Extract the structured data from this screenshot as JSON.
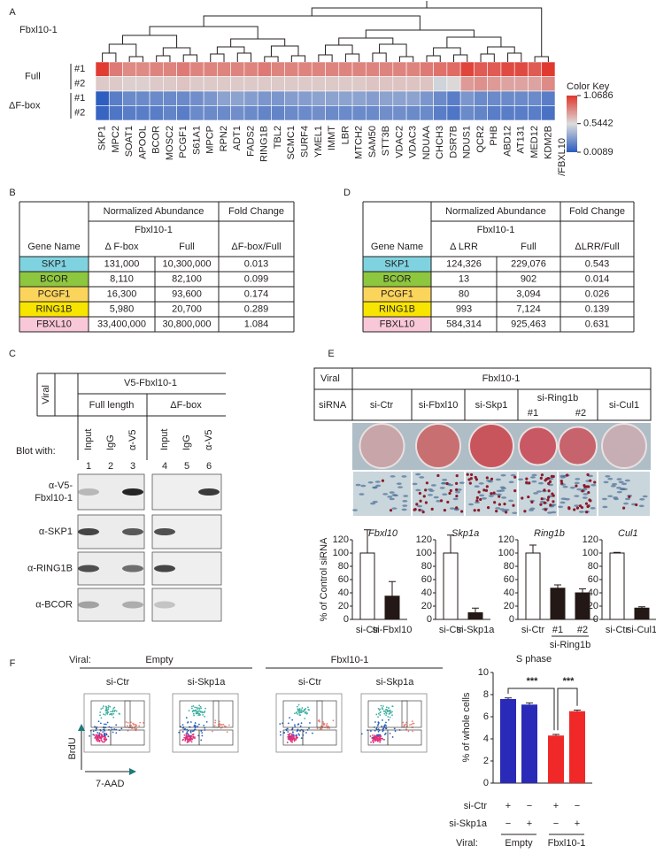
{
  "panel_labels": [
    "A",
    "B",
    "C",
    "D",
    "E",
    "F"
  ],
  "panel_a": {
    "group_label": "Fbxl10-1",
    "row_groups": [
      "Full",
      "ΔF-box"
    ],
    "row_labels": [
      "#1",
      "#2",
      "#1",
      "#2"
    ],
    "genes": [
      "SKP1",
      "MPC2",
      "SOAT1",
      "APOOL",
      "BCOR",
      "MOSC2",
      "PCGF1",
      "S61A1",
      "MPCP",
      "RPN2",
      "ADT1",
      "FADS2",
      "RING1B",
      "TBL2",
      "SCMC1",
      "SURF4",
      "YMEL1",
      "IMMT",
      "LBR",
      "MTCH2",
      "SAM50",
      "STT3B",
      "VDAC2",
      "VDAC3",
      "NDUAA",
      "CHCH3",
      "DSR7B",
      "NDUS1",
      "QCR2",
      "PHB",
      "ABD12",
      "AT131",
      "MED12",
      "KDM2B"
    ],
    "gene_colors": [
      "#e3262a",
      "#231f20",
      "#231f20",
      "#231f20",
      "#e3262a",
      "#231f20",
      "#e3262a",
      "#231f20",
      "#231f20",
      "#231f20",
      "#231f20",
      "#231f20",
      "#e3262a",
      "#231f20",
      "#231f20",
      "#231f20",
      "#231f20",
      "#231f20",
      "#231f20",
      "#231f20",
      "#231f20",
      "#231f20",
      "#231f20",
      "#231f20",
      "#231f20",
      "#231f20",
      "#231f20",
      "#231f20",
      "#231f20",
      "#231f20",
      "#231f20",
      "#231f20",
      "#231f20",
      "#231f20"
    ],
    "label_suffix": "/FBXL10",
    "rows": [
      [
        1.05,
        0.85,
        0.8,
        0.8,
        0.82,
        0.82,
        0.85,
        0.82,
        0.82,
        0.82,
        0.82,
        0.82,
        0.85,
        0.82,
        0.82,
        0.82,
        0.82,
        0.82,
        0.82,
        0.82,
        0.82,
        0.82,
        0.82,
        0.82,
        0.85,
        0.88,
        0.9,
        1.02,
        0.95,
        0.95,
        1.0,
        1.0,
        0.95,
        1.06
      ],
      [
        0.6,
        0.6,
        0.58,
        0.58,
        0.6,
        0.6,
        0.62,
        0.6,
        0.6,
        0.6,
        0.6,
        0.6,
        0.6,
        0.6,
        0.6,
        0.6,
        0.6,
        0.6,
        0.6,
        0.6,
        0.62,
        0.62,
        0.62,
        0.62,
        0.62,
        0.5,
        0.55,
        0.75,
        0.78,
        0.75,
        0.72,
        0.72,
        0.72,
        0.8
      ],
      [
        0.02,
        0.15,
        0.2,
        0.2,
        0.2,
        0.2,
        0.2,
        0.22,
        0.25,
        0.3,
        0.3,
        0.28,
        0.25,
        0.25,
        0.28,
        0.28,
        0.3,
        0.3,
        0.3,
        0.3,
        0.28,
        0.3,
        0.3,
        0.3,
        0.25,
        0.2,
        0.15,
        0.25,
        0.2,
        0.2,
        0.2,
        0.2,
        0.2,
        0.15
      ],
      [
        0.05,
        0.12,
        0.15,
        0.15,
        0.15,
        0.18,
        0.15,
        0.2,
        0.2,
        0.2,
        0.22,
        0.2,
        0.18,
        0.18,
        0.2,
        0.2,
        0.22,
        0.2,
        0.2,
        0.2,
        0.2,
        0.22,
        0.22,
        0.2,
        0.2,
        0.15,
        0.12,
        0.2,
        0.18,
        0.15,
        0.15,
        0.15,
        0.15,
        0.1
      ]
    ],
    "color_key": {
      "title": "Color Key",
      "lim": [
        0.0089,
        1.0686
      ],
      "ticks": [
        1.0686,
        0.5442,
        0.0089
      ],
      "colors": [
        "#2a5bbf",
        "#dcdcdc",
        "#e0362c"
      ]
    }
  },
  "panel_b": {
    "header": [
      "Normalized Abundance",
      "Fold Change"
    ],
    "subheader": "Fbxl10-1",
    "columns": [
      "Gene Name",
      "Δ F-box",
      "Full",
      "ΔF-box/Full"
    ],
    "rows": [
      [
        "SKP1",
        "131,000",
        "10,300,000",
        "0.013"
      ],
      [
        "BCOR",
        "8,110",
        "82,100",
        "0.099"
      ],
      [
        "PCGF1",
        "16,300",
        "93,600",
        "0.174"
      ],
      [
        "RING1B",
        "5,980",
        "20,700",
        "0.289"
      ],
      [
        "FBXL10",
        "33,400,000",
        "30,800,000",
        "1.084"
      ]
    ],
    "row_colors": [
      "#7fd3e0",
      "#8dc63f",
      "#fbd45c",
      "#f7e400",
      "#f9c8d8"
    ]
  },
  "panel_d": {
    "header": [
      "Normalized Abundance",
      "Fold Change"
    ],
    "subheader": "Fbxl10-1",
    "columns": [
      "Gene Name",
      "Δ LRR",
      "Full",
      "ΔLRR/Full"
    ],
    "rows": [
      [
        "SKP1",
        "124,326",
        "229,076",
        "0.543"
      ],
      [
        "BCOR",
        "13",
        "902",
        "0.014"
      ],
      [
        "PCGF1",
        "80",
        "3,094",
        "0.026"
      ],
      [
        "RING1B",
        "993",
        "7,124",
        "0.139"
      ],
      [
        "FBXL10",
        "584,314",
        "925,463",
        "0.631"
      ]
    ],
    "row_colors": [
      "#7fd3e0",
      "#8dc63f",
      "#fbd45c",
      "#f7e400",
      "#f9c8d8"
    ]
  },
  "panel_c": {
    "viral_label": "Viral",
    "construct": "V5-Fbxl10-1",
    "groups": [
      "Full length",
      "ΔF-box"
    ],
    "lanes": [
      "Input",
      "IgG",
      "α-V5",
      "Input",
      "IgG",
      "α-V5"
    ],
    "lane_numbers": [
      1,
      2,
      3,
      4,
      5,
      6
    ],
    "blot_with": "Blot with:",
    "blots": [
      [
        "α-V5-",
        "Fbxl10-1"
      ],
      [
        "α-SKP1"
      ],
      [
        "α-RING1B"
      ],
      [
        "α-BCOR"
      ]
    ]
  },
  "panel_e": {
    "table": {
      "viral_label": "Viral",
      "viral": "Fbxl10-1",
      "sirna_label": "siRNA",
      "sirnas": [
        "si-Ctr",
        "si-Fbxl10",
        "si-Skp1",
        "si-Ring1b",
        "si-Cul1"
      ],
      "ring_subs": [
        "#1",
        "#2"
      ]
    },
    "ylabel": "% of Control siRNA",
    "ylim": [
      0,
      120
    ],
    "yticks": [
      0,
      20,
      40,
      60,
      80,
      100,
      120
    ],
    "bar_colors": [
      "#ffffff",
      "#231815"
    ],
    "charts": [
      {
        "title": "Fbxl10",
        "categories": [
          "si-Ctr",
          "si-Fbxl10"
        ],
        "values": [
          100,
          35
        ],
        "errors": [
          35,
          22
        ]
      },
      {
        "title": "Skp1a",
        "categories": [
          "si-Ctr",
          "si-Skp1a"
        ],
        "values": [
          100,
          10
        ],
        "errors": [
          27,
          7
        ]
      },
      {
        "title": "Ring1b",
        "categories": [
          "si-Ctr",
          "#1",
          "#2"
        ],
        "values": [
          100,
          47,
          40
        ],
        "errors": [
          12,
          5,
          6
        ],
        "group_label": "si-Ring1b"
      },
      {
        "title": "Cul1",
        "categories": [
          "si-Ctr",
          "si-Cul1"
        ],
        "values": [
          100,
          17
        ],
        "errors": [
          1,
          2
        ]
      }
    ]
  },
  "panel_f": {
    "viral_label": "Viral:",
    "groups": [
      "Empty",
      "Fbxl10-1"
    ],
    "sirnas": [
      "si-Ctr",
      "si-Skp1a",
      "si-Ctr",
      "si-Skp1a"
    ],
    "y_axis": "BrdU",
    "x_axis": "7-AAD",
    "chart": {
      "type": "bar",
      "title": "S phase",
      "ylabel": "% of whole cells",
      "ylim": [
        0,
        10
      ],
      "yticks": [
        0,
        2,
        4,
        6,
        8,
        10
      ],
      "values": [
        7.6,
        7.1,
        4.3,
        6.5
      ],
      "errors": [
        0.1,
        0.15,
        0.1,
        0.1
      ],
      "colors": [
        "#2a2ab8",
        "#2a2ab8",
        "#f02828",
        "#f02828"
      ],
      "significance": [
        "***",
        "***"
      ],
      "conditions": [
        {
          "label": "si-Ctr",
          "marks": [
            "+",
            "−",
            "+",
            "−"
          ]
        },
        {
          "label": "si-Skp1a",
          "marks": [
            "−",
            "+",
            "−",
            "+"
          ]
        }
      ],
      "viral_label": "Viral:",
      "groups": [
        "Empty",
        "Fbxl10-1"
      ]
    }
  }
}
